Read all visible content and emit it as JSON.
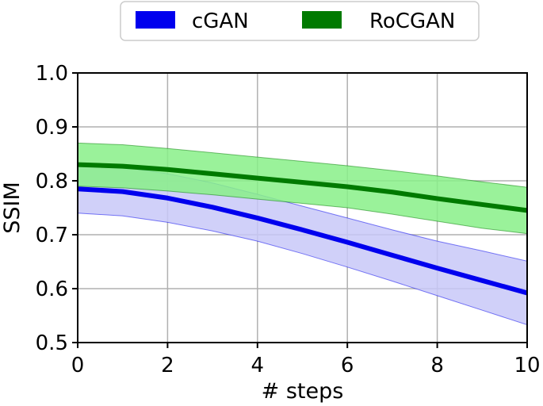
{
  "chart_data": {
    "type": "line",
    "xlabel": "# steps",
    "ylabel": "SSIM",
    "xlim": [
      0,
      10
    ],
    "ylim": [
      0.5,
      1.0
    ],
    "xticks": [
      0,
      2,
      4,
      6,
      8,
      10
    ],
    "yticks": [
      0.5,
      0.6,
      0.7,
      0.8,
      0.9,
      1.0
    ],
    "xtick_labels": [
      "0",
      "2",
      "4",
      "6",
      "8",
      "10"
    ],
    "ytick_labels": [
      "0.5",
      "0.6",
      "0.7",
      "0.8",
      "0.9",
      "1.0"
    ],
    "grid": true,
    "legend_position": "top-center, outside plot",
    "x": [
      0,
      1,
      2,
      3,
      4,
      5,
      6,
      7,
      8,
      9,
      10
    ],
    "series": [
      {
        "name": "cGAN",
        "color": "#0000ee",
        "band_color": "#c8c8f8",
        "values": [
          0.785,
          0.78,
          0.768,
          0.751,
          0.731,
          0.709,
          0.686,
          0.662,
          0.638,
          0.615,
          0.592
        ],
        "lower": [
          0.74,
          0.735,
          0.723,
          0.707,
          0.688,
          0.665,
          0.64,
          0.614,
          0.587,
          0.56,
          0.533
        ],
        "upper": [
          0.83,
          0.825,
          0.813,
          0.796,
          0.775,
          0.753,
          0.731,
          0.709,
          0.688,
          0.67,
          0.651
        ]
      },
      {
        "name": "RoCGAN",
        "color": "#007a00",
        "band_color": "#88f088",
        "values": [
          0.83,
          0.827,
          0.821,
          0.813,
          0.805,
          0.797,
          0.789,
          0.779,
          0.767,
          0.756,
          0.745
        ],
        "lower": [
          0.79,
          0.787,
          0.781,
          0.774,
          0.766,
          0.758,
          0.75,
          0.738,
          0.725,
          0.712,
          0.702
        ],
        "upper": [
          0.87,
          0.867,
          0.86,
          0.852,
          0.844,
          0.836,
          0.828,
          0.819,
          0.809,
          0.798,
          0.788
        ]
      }
    ]
  }
}
